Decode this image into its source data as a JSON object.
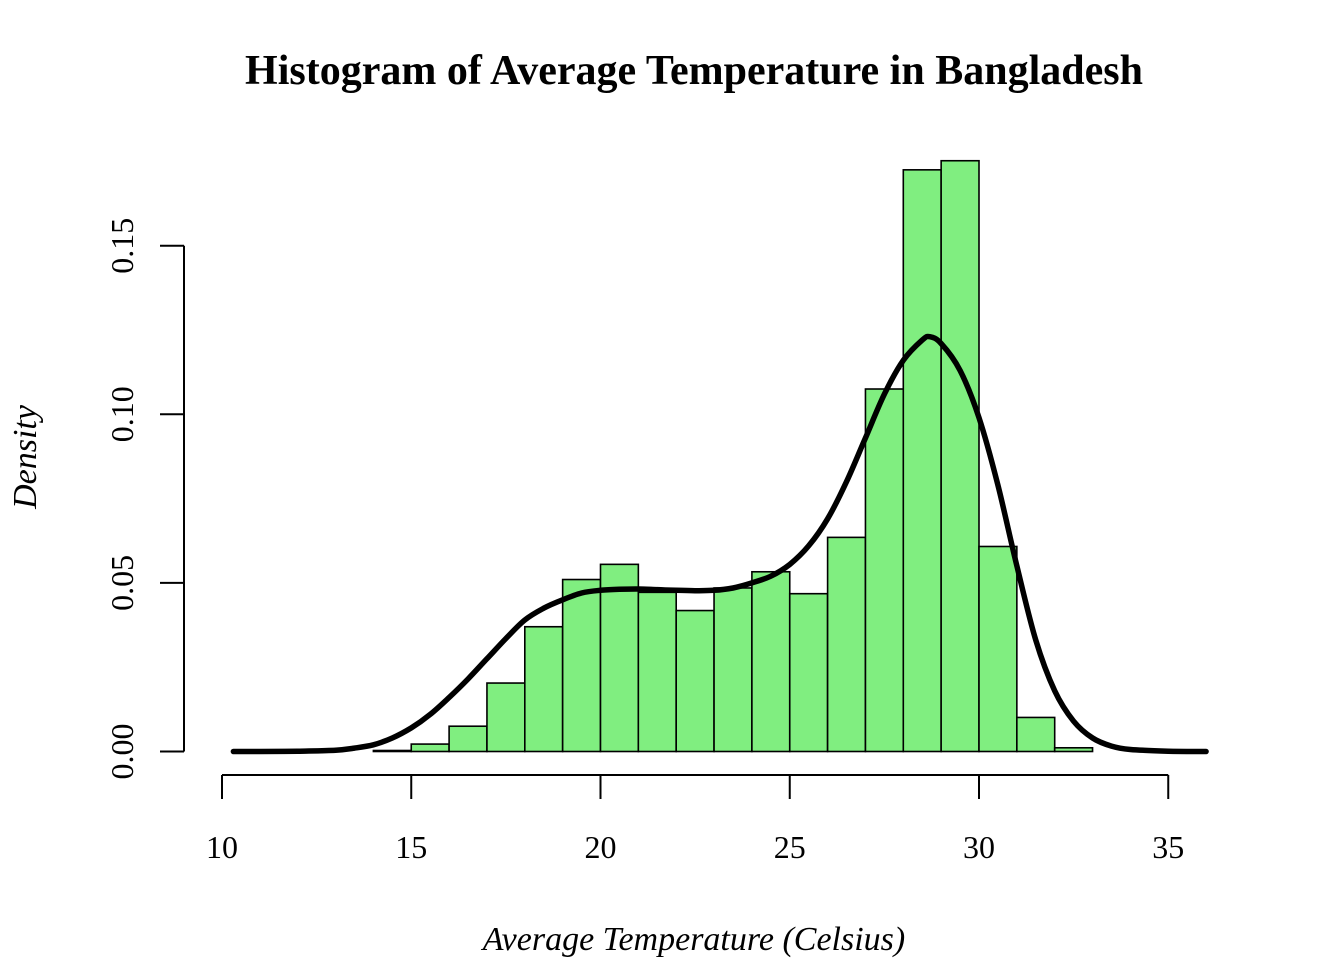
{
  "chart_data": {
    "type": "bar",
    "title": "Histogram of Average Temperature in Bangladesh",
    "xlabel": "Average Temperature (Celsius)",
    "ylabel": "Density",
    "xlim": [
      10,
      36
    ],
    "ylim": [
      0,
      0.18
    ],
    "x_ticks": [
      10,
      15,
      20,
      25,
      30,
      35
    ],
    "x_tick_labels": [
      "10",
      "15",
      "20",
      "25",
      "30",
      "35"
    ],
    "y_ticks": [
      0,
      0.05,
      0.1,
      0.15
    ],
    "y_tick_labels": [
      "0.00",
      "0.05",
      "0.10",
      "0.15"
    ],
    "bar_color": "#80ee80",
    "bar_edge_color": "#000000",
    "bins": {
      "edges": [
        14,
        15,
        16,
        17,
        18,
        19,
        20,
        21,
        22,
        23,
        24,
        25,
        26,
        27,
        28,
        29,
        30,
        31,
        32,
        33
      ],
      "values": [
        0.0003,
        0.0022,
        0.0075,
        0.0203,
        0.037,
        0.051,
        0.0555,
        0.0472,
        0.0418,
        0.0485,
        0.0533,
        0.0468,
        0.0635,
        0.1075,
        0.1725,
        0.1752,
        0.0608,
        0.0101,
        0.0011
      ]
    },
    "density_curve": {
      "name": "",
      "color": "#000000",
      "x": [
        10.3,
        11,
        12,
        13,
        13.5,
        14,
        14.5,
        15,
        15.5,
        16,
        16.5,
        17,
        17.5,
        18,
        18.5,
        19,
        19.5,
        20,
        20.5,
        21,
        21.5,
        22,
        22.5,
        23,
        23.5,
        24,
        24.5,
        25,
        25.5,
        26,
        26.5,
        27,
        27.5,
        28,
        28.5,
        28.7,
        29,
        29.5,
        30,
        30.5,
        31,
        31.5,
        32,
        32.5,
        33,
        33.5,
        34,
        35,
        36
      ],
      "y": [
        0.0,
        0.0,
        0.0001,
        0.0004,
        0.001,
        0.002,
        0.004,
        0.007,
        0.011,
        0.016,
        0.0215,
        0.0275,
        0.0335,
        0.039,
        0.0425,
        0.045,
        0.047,
        0.0478,
        0.0481,
        0.0482,
        0.048,
        0.0478,
        0.0477,
        0.0478,
        0.0485,
        0.05,
        0.052,
        0.0555,
        0.061,
        0.069,
        0.08,
        0.093,
        0.106,
        0.116,
        0.122,
        0.123,
        0.121,
        0.113,
        0.099,
        0.079,
        0.055,
        0.033,
        0.018,
        0.009,
        0.004,
        0.0016,
        0.0006,
        0.0001,
        0.0
      ]
    }
  }
}
